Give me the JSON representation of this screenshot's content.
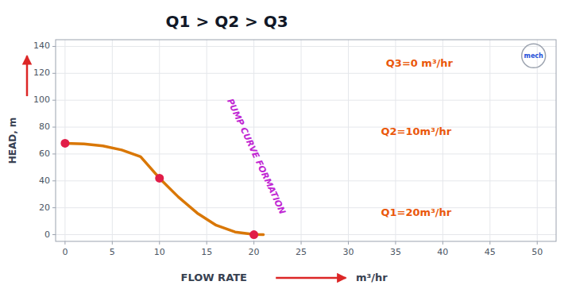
{
  "chart_data": {
    "type": "line",
    "title": "Q1 > Q2 > Q3",
    "xlabel": "FLOW RATE",
    "x_units": "m³/hr",
    "ylabel": "HEAD, m",
    "xlim": [
      -1,
      52
    ],
    "ylim": [
      -5,
      145
    ],
    "xticks": [
      0,
      5,
      10,
      15,
      20,
      25,
      30,
      35,
      40,
      45,
      50
    ],
    "yticks": [
      0,
      20,
      40,
      60,
      80,
      100,
      120,
      140
    ],
    "grid": true,
    "series": [
      {
        "type": "line",
        "color": "#d97706",
        "x": [
          0,
          2,
          4,
          6,
          8,
          10,
          12,
          14,
          16,
          18,
          20,
          21
        ],
        "values": [
          68,
          67.5,
          66,
          63,
          58,
          42,
          28,
          16,
          7,
          2,
          0.2,
          0
        ]
      },
      {
        "type": "scatter",
        "color": "#e11d48",
        "x": [
          0,
          10,
          20
        ],
        "values": [
          68,
          42,
          0
        ]
      }
    ],
    "annotations": [
      {
        "text": "PUMP CURVE FORMATION"
      },
      {
        "text": "Q3=0 m³/hr"
      },
      {
        "text": "Q2=10m³/hr"
      },
      {
        "text": "Q1=20m³/hr"
      },
      {
        "text": "mech"
      }
    ]
  }
}
